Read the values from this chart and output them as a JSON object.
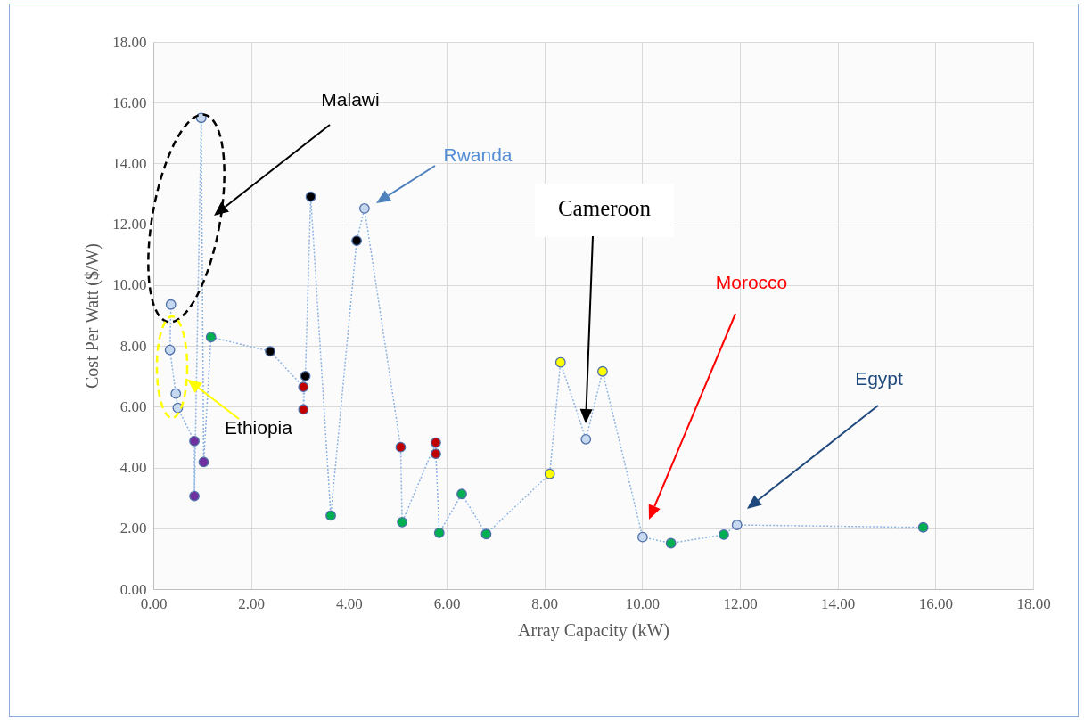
{
  "chart_data": {
    "type": "line",
    "xlabel": "Array Capacity (kW)",
    "ylabel": "Cost Per Watt ($/W)",
    "x": [
      0.36,
      0.34,
      0.46,
      0.5,
      0.84,
      0.84,
      0.98,
      1.03,
      1.18,
      2.39,
      3.07,
      3.07,
      3.11,
      3.22,
      3.63,
      4.16,
      4.32,
      5.06,
      5.09,
      5.78,
      5.78,
      5.85,
      6.31,
      6.81,
      8.11,
      8.33,
      8.85,
      9.19,
      10.01,
      10.59,
      11.67,
      11.94,
      15.75
    ],
    "series": [
      {
        "color": "#8db3e2",
        "line_style": "dotted",
        "marker": "circle",
        "values": [
          9.36,
          7.87,
          6.43,
          5.96,
          4.87,
          3.06,
          15.5,
          4.18,
          8.29,
          7.82,
          6.65,
          5.91,
          7.01,
          12.91,
          2.42,
          11.46,
          12.52,
          4.67,
          2.2,
          4.82,
          4.45,
          1.85,
          3.13,
          1.81,
          3.79,
          7.46,
          4.93,
          7.16,
          1.71,
          1.51,
          1.79,
          2.11,
          2.03
        ],
        "colors": [
          "#c6d9f1",
          "#c6d9f1",
          "#c6d9f1",
          "#c6d9f1",
          "#7030a0",
          "#7030a0",
          "#c6d9f1",
          "#7030a0",
          "#00b050",
          "#000000",
          "#c00000",
          "#c00000",
          "#000000",
          "#000000",
          "#00b050",
          "#000000",
          "#c6d9f1",
          "#c00000",
          "#00b050",
          "#c00000",
          "#c00000",
          "#00b050",
          "#00b050",
          "#00b050",
          "#ffff00",
          "#ffff00",
          "#c6d9f1",
          "#ffff00",
          "#c6d9f1",
          "#00b050",
          "#00b050",
          "#c6d9f1",
          "#00b050"
        ]
      }
    ],
    "xlim": [
      0,
      18
    ],
    "ylim": [
      0,
      18
    ],
    "xticks": [
      {
        "value": 0,
        "label": "0.00"
      },
      {
        "value": 2,
        "label": "2.00"
      },
      {
        "value": 4,
        "label": "4.00"
      },
      {
        "value": 6,
        "label": "6.00"
      },
      {
        "value": 8,
        "label": "8.00"
      },
      {
        "value": 10,
        "label": "10.00"
      },
      {
        "value": 12,
        "label": "12.00"
      },
      {
        "value": 14,
        "label": "14.00"
      },
      {
        "value": 16,
        "label": "16.00"
      },
      {
        "value": 18,
        "label": "18.00"
      }
    ],
    "yticks": [
      {
        "value": 0,
        "label": "0.00"
      },
      {
        "value": 2,
        "label": "2.00"
      },
      {
        "value": 4,
        "label": "4.00"
      },
      {
        "value": 6,
        "label": "6.00"
      },
      {
        "value": 8,
        "label": "8.00"
      },
      {
        "value": 10,
        "label": "10.00"
      },
      {
        "value": 12,
        "label": "12.00"
      },
      {
        "value": 14,
        "label": "14.00"
      },
      {
        "value": 16,
        "label": "16.00"
      },
      {
        "value": 18,
        "label": "18.00"
      }
    ],
    "grid": true,
    "annotations": [
      "Malawi",
      "Rwanda",
      "Cameroon",
      "Morocco",
      "Egypt",
      {
        "text": "Ethiopia",
        "x": 0.46,
        "y": 6.43
      }
    ]
  }
}
